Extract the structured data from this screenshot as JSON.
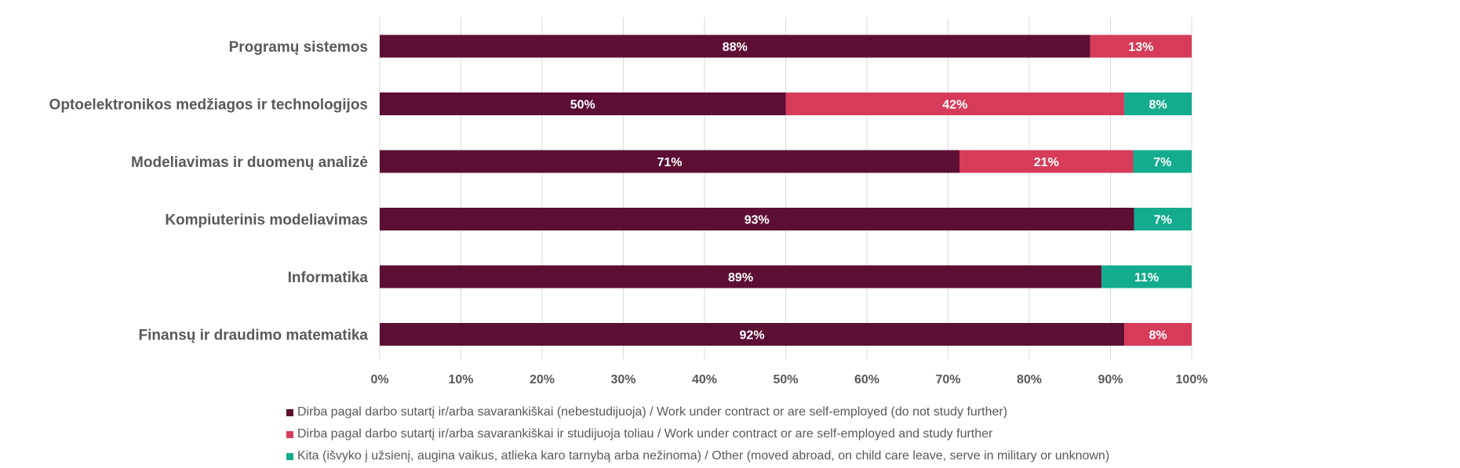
{
  "chart_data": {
    "type": "bar",
    "orientation": "horizontal",
    "stacked": "percent",
    "categories": [
      "Programų sistemos",
      "Optoelektronikos medžiagos ir technologijos",
      "Modeliavimas ir duomenų analizė",
      "Kompiuterinis modeliavimas",
      "Informatika",
      "Finansų ir draudimo matematika"
    ],
    "series": [
      {
        "name": "Dirba pagal darbo sutartį ir/arba savarankiškai (nebestudijuoja) / Work under contract or are self-employed (do not study further)",
        "color": "#5c0f33",
        "values": [
          87.5,
          50,
          71.4,
          92.9,
          88.9,
          91.7
        ],
        "labels": [
          "88%",
          "50%",
          "71%",
          "93%",
          "89%",
          "92%"
        ]
      },
      {
        "name": "Dirba pagal darbo sutartį ir/arba savarankiškai  ir studijuoja toliau / Work under contract or are self-employed and study further",
        "color": "#d63c5a",
        "values": [
          12.5,
          41.7,
          21.4,
          0,
          0,
          8.3
        ],
        "labels": [
          "13%",
          "42%",
          "21%",
          "",
          "",
          "8%"
        ]
      },
      {
        "name": "Kita (išvyko į užsienį, augina vaikus, atlieka karo tarnybą arba nežinoma) / Other (moved abroad, on child care leave, serve in military or unknown)",
        "color": "#15ac8e",
        "values": [
          0,
          8.3,
          7.2,
          7.1,
          11.1,
          0
        ],
        "labels": [
          "",
          "8%",
          "7%",
          "7%",
          "11%",
          ""
        ]
      }
    ],
    "x_ticks": [
      "0%",
      "10%",
      "20%",
      "30%",
      "40%",
      "50%",
      "60%",
      "70%",
      "80%",
      "90%",
      "100%"
    ],
    "xlim": [
      0,
      100
    ],
    "grid": true,
    "legend_position": "bottom"
  }
}
